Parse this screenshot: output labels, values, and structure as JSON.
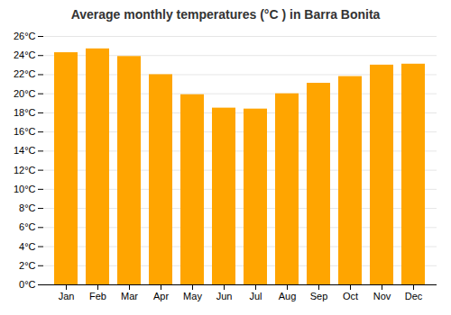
{
  "chart_data": {
    "type": "bar",
    "title": "Average monthly temperatures (°C ) in Barra Bonita",
    "categories": [
      "Jan",
      "Feb",
      "Mar",
      "Apr",
      "May",
      "Jun",
      "Jul",
      "Aug",
      "Sep",
      "Oct",
      "Nov",
      "Dec"
    ],
    "values": [
      24.3,
      24.7,
      23.9,
      22.0,
      19.9,
      18.5,
      18.4,
      20.0,
      21.1,
      21.8,
      23.0,
      23.1
    ],
    "color": "#FFA500",
    "ylim": [
      0,
      26
    ],
    "yticks": [
      {
        "value": 0,
        "label": "0°C"
      },
      {
        "value": 2,
        "label": "2°C"
      },
      {
        "value": 4,
        "label": "4°C"
      },
      {
        "value": 6,
        "label": "6°C"
      },
      {
        "value": 8,
        "label": "8°C"
      },
      {
        "value": 10,
        "label": "10°C"
      },
      {
        "value": 12,
        "label": "12°C"
      },
      {
        "value": 14,
        "label": "14°C"
      },
      {
        "value": 16,
        "label": "16°C"
      },
      {
        "value": 18,
        "label": "18°C"
      },
      {
        "value": 20,
        "label": "20°C"
      },
      {
        "value": 22,
        "label": "22°C"
      },
      {
        "value": 24,
        "label": "24°C"
      },
      {
        "value": 26,
        "label": "26°C"
      }
    ],
    "grid": true
  }
}
